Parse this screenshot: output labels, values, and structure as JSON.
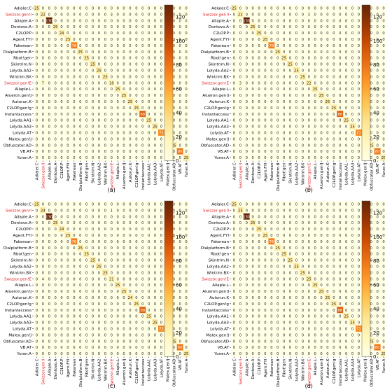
{
  "figure": {
    "panel_captions": [
      "(a)",
      "(b)",
      "(c)",
      "(d)"
    ]
  },
  "colors": {
    "highlight_label": "#e31a1c",
    "colormap": [
      "#ffffe5",
      "#fff7bc",
      "#fee391",
      "#fec44f",
      "#fe9929",
      "#ec7014",
      "#cc4c02",
      "#993404",
      "#662506"
    ]
  },
  "chart_data": [
    {
      "type": "heatmap",
      "panel": "(a)",
      "rows": [
        "Adialer.C",
        "Swizzor.gen!I",
        "Allaple.A",
        "Dontovo.A",
        "C2LOP.P",
        "Agent.FYI",
        "Fakerean",
        "Dialplatform.B",
        "Rbot!gen",
        "Skintrim.N",
        "Lolyda.AA2",
        "Wintrim.BX",
        "Swizzor.gen!E",
        "Allaple.L",
        "Alueron.gen!J",
        "Autorun.K",
        "C2LOP.gen!g",
        "Instantaccess",
        "Lolyda.AA1",
        "Lolyda.AA3",
        "Lolyda.AT",
        "Malex.gen!J",
        "Obfuscator.AD",
        "VB.AT",
        "Yuner.A"
      ],
      "columns": [
        "Adialer.C",
        "Swizzor.gen!I",
        "Allaple.A",
        "Dontovo.A",
        "C2LOP.P",
        "Agent.FYI",
        "Fakerean",
        "Dialplatform.B",
        "Rbot!gen",
        "Skintrim.N",
        "Lolyda.AA2",
        "Wintrim.BX",
        "Swizzor.gen!E",
        "Allaple.L",
        "Alueron.gen!J",
        "Autorun.K",
        "C2LOP.gen!g",
        "Instantaccess",
        "Lolyda.AA1",
        "Lolyda.AA3",
        "Lolyda.AT",
        "Malex.gen!J",
        "Obfuscator.AD",
        "VB.AT",
        "Yuner.A"
      ],
      "highlighted_labels": [
        "Swizzor.gen!I",
        "Swizzor.gen!E"
      ],
      "diagonal": [
        25,
        22,
        130,
        25,
        24,
        25,
        76,
        25,
        25,
        25,
        25,
        25,
        18,
        25,
        25,
        25,
        25,
        88,
        25,
        25,
        71,
        25,
        25,
        80,
        25
      ],
      "off_diagonal": [
        {
          "row": 1,
          "col": 12,
          "value": 3
        },
        {
          "row": 12,
          "col": 1,
          "value": 7
        }
      ],
      "color_range": [
        0,
        130
      ],
      "colorbar_ticks": [
        0,
        20,
        40,
        60,
        80,
        100,
        120
      ]
    },
    {
      "type": "heatmap",
      "panel": "(b)",
      "rows": [
        "Adialer.C",
        "Swizzor.gen!I",
        "Allaple.A",
        "Dontovo.A",
        "C2LOP.P",
        "Agent.FYI",
        "Fakerean",
        "Dialplatform.B",
        "Rbot!gen",
        "Skintrim.N",
        "Lolyda.AA2",
        "Wintrim.BX",
        "Swizzor.gen!E",
        "Allaple.L",
        "Alueron.gen!J",
        "Autorun.K",
        "C2LOP.gen!g",
        "Instantaccess",
        "Lolyda.AA1",
        "Lolyda.AA3",
        "Lolyda.AT",
        "Malex.gen!J",
        "Obfuscator.AD",
        "VB.AT",
        "Yuner.A"
      ],
      "columns": [
        "Adialer.C",
        "Swizzor.gen!I",
        "Allaple.A",
        "Dontovo.A",
        "C2LOP.P",
        "Agent.FYI",
        "Fakerean",
        "Dialplatform.B",
        "Rbot!gen",
        "Skintrim.N",
        "Lolyda.AA2",
        "Wintrim.BX",
        "Swizzor.gen!E",
        "Allaple.L",
        "Alueron.gen!J",
        "Autorun.K",
        "C2LOP.gen!g",
        "Instantaccess",
        "Lolyda.AA1",
        "Lolyda.AA3",
        "Lolyda.AT",
        "Malex.gen!J",
        "Obfuscator.AD",
        "VB.AT",
        "Yuner.A"
      ],
      "highlighted_labels": [
        "Swizzor.gen!I",
        "Swizzor.gen!E"
      ],
      "diagonal": [
        25,
        22,
        130,
        25,
        25,
        25,
        76,
        25,
        25,
        25,
        25,
        25,
        22,
        25,
        25,
        25,
        25,
        88,
        25,
        25,
        71,
        25,
        25,
        80,
        25
      ],
      "off_diagonal": [
        {
          "row": 1,
          "col": 12,
          "value": 3
        },
        {
          "row": 12,
          "col": 1,
          "value": 3
        }
      ],
      "color_range": [
        0,
        130
      ],
      "colorbar_ticks": [
        0,
        20,
        40,
        60,
        80,
        100,
        120
      ]
    },
    {
      "type": "heatmap",
      "panel": "(c)",
      "rows": [
        "Adialer.C",
        "Swizzor.gen!I",
        "Allaple.A",
        "Dontovo.A",
        "C2LOP.P",
        "Agent.FYI",
        "Fakerean",
        "Dialplatform.B",
        "Rbot!gen",
        "Skintrim.N",
        "Lolyda.AA2",
        "Wintrim.BX",
        "Swizzor.gen!E",
        "Allaple.L",
        "Alueron.gen!J",
        "Autorun.K",
        "C2LOP.gen!g",
        "Instantaccess",
        "Lolyda.AA1",
        "Lolyda.AA3",
        "Lolyda.AT",
        "Malex.gen!J",
        "Obfuscator.AD",
        "VB.AT",
        "Yuner.A"
      ],
      "columns": [
        "Adialer.C",
        "Swizzor.gen!I",
        "Allaple.A",
        "Dontovo.A",
        "C2LOP.P",
        "Agent.FYI",
        "Fakerean",
        "Dialplatform.B",
        "Rbot!gen",
        "Skintrim.N",
        "Lolyda.AA2",
        "Wintrim.BX",
        "Swizzor.gen!E",
        "Allaple.L",
        "Alueron.gen!J",
        "Autorun.K",
        "C2LOP.gen!g",
        "Instantaccess",
        "Lolyda.AA1",
        "Lolyda.AA3",
        "Lolyda.AT",
        "Malex.gen!J",
        "Obfuscator.AD",
        "VB.AT",
        "Yuner.A"
      ],
      "highlighted_labels": [
        "Swizzor.gen!I",
        "Swizzor.gen!E"
      ],
      "diagonal": [
        25,
        24,
        130,
        25,
        24,
        25,
        76,
        25,
        25,
        25,
        25,
        25,
        21,
        25,
        25,
        24,
        25,
        88,
        25,
        25,
        71,
        25,
        25,
        80,
        25
      ],
      "off_diagonal": [
        {
          "row": 1,
          "col": 12,
          "value": 1
        },
        {
          "row": 12,
          "col": 1,
          "value": 4
        }
      ],
      "color_range": [
        0,
        130
      ],
      "colorbar_ticks": [
        0,
        20,
        40,
        60,
        80,
        100,
        120
      ]
    },
    {
      "type": "heatmap",
      "panel": "(d)",
      "rows": [
        "Adialer.C",
        "Swizzor.gen!I",
        "Allaple.A",
        "Dontovo.A",
        "C2LOP.P",
        "Agent.FYI",
        "Fakerean",
        "Dialplatform.B",
        "Rbot!gen",
        "Skintrim.N",
        "Lolyda.AA2",
        "Wintrim.BX",
        "Swizzor.gen!E",
        "Allaple.L",
        "Alueron.gen!J",
        "Autorun.K",
        "C2LOP.gen!g",
        "Instantaccess",
        "Lolyda.AA1",
        "Lolyda.AA3",
        "Lolyda.AT",
        "Malex.gen!J",
        "Obfuscator.AD",
        "VB.AT",
        "Yuner.A"
      ],
      "columns": [
        "Adialer.C",
        "Swizzor.gen!I",
        "Allaple.A",
        "Dontovo.A",
        "C2LOP.P",
        "Agent.FYI",
        "Fakerean",
        "Dialplatform.B",
        "Rbot!gen",
        "Skintrim.N",
        "Lolyda.AA2",
        "Wintrim.BX",
        "Swizzor.gen!E",
        "Allaple.L",
        "Alueron.gen!J",
        "Autorun.K",
        "C2LOP.gen!g",
        "Instantaccess",
        "Lolyda.AA1",
        "Lolyda.AA3",
        "Lolyda.AT",
        "Malex.gen!J",
        "Obfuscator.AD",
        "VB.AT",
        "Yuner.A"
      ],
      "highlighted_labels": [
        "Swizzor.gen!I",
        "Swizzor.gen!E"
      ],
      "diagonal": [
        25,
        25,
        130,
        25,
        25,
        25,
        76,
        25,
        25,
        25,
        25,
        25,
        25,
        25,
        25,
        25,
        25,
        88,
        25,
        25,
        71,
        25,
        25,
        80,
        25
      ],
      "off_diagonal": [],
      "color_range": [
        0,
        130
      ],
      "colorbar_ticks": [
        0,
        20,
        40,
        60,
        80,
        100,
        120
      ]
    }
  ]
}
